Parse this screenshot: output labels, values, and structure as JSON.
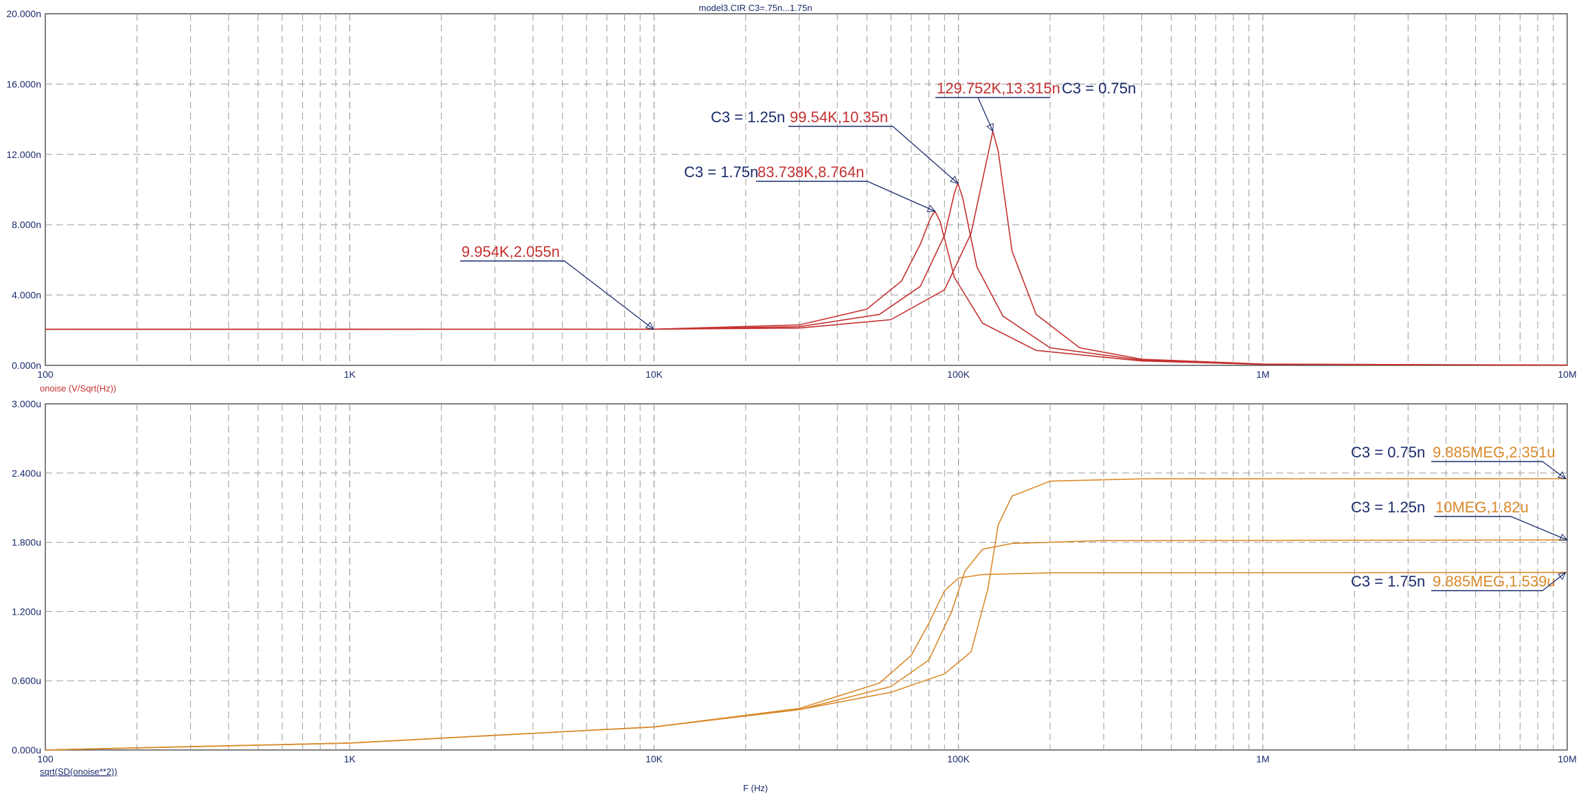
{
  "title": "model3.CIR C3=.75n...1.75n",
  "xlabel": "F (Hz)",
  "colors": {
    "top": "#c43030",
    "bottom": "#d98a2a",
    "axis": "#1a2a6b",
    "grid": "#9a9a9a"
  },
  "chart_data": [
    {
      "type": "line",
      "ylabel": "onoise (V/Sqrt(Hz))",
      "xscale": "log",
      "xlim": [
        100,
        10000000
      ],
      "ylim": [
        0,
        20
      ],
      "yunit": "n",
      "x_ticks": [
        "100",
        "1K",
        "10K",
        "100K",
        "1M",
        "10M"
      ],
      "y_ticks": [
        "0.000n",
        "4.000n",
        "8.000n",
        "12.000n",
        "16.000n",
        "20.000n"
      ],
      "grid": true,
      "series": [
        {
          "name": "C3 = 0.75n",
          "x": [
            100,
            10000,
            30000,
            60000,
            90000,
            110000,
            125000,
            129752,
            135000,
            150000,
            180000,
            250000,
            400000,
            1000000,
            10000000
          ],
          "y": [
            2.05,
            2.06,
            2.12,
            2.6,
            4.3,
            7.5,
            12.0,
            13.315,
            12.2,
            6.5,
            2.9,
            1.0,
            0.35,
            0.08,
            0.01
          ]
        },
        {
          "name": "C3 = 1.25n",
          "x": [
            100,
            10000,
            30000,
            55000,
            75000,
            90000,
            97000,
            99540,
            103000,
            115000,
            140000,
            200000,
            400000,
            1000000,
            10000000
          ],
          "y": [
            2.05,
            2.06,
            2.2,
            2.9,
            4.5,
            7.4,
            9.8,
            10.35,
            9.6,
            5.6,
            2.8,
            1.0,
            0.3,
            0.06,
            0.01
          ]
        },
        {
          "name": "C3 = 1.75n",
          "x": [
            100,
            10000,
            30000,
            50000,
            65000,
            75000,
            81000,
            83738,
            87000,
            97000,
            120000,
            180000,
            400000,
            1000000,
            10000000
          ],
          "y": [
            2.05,
            2.06,
            2.3,
            3.2,
            4.8,
            6.9,
            8.4,
            8.764,
            8.2,
            5.0,
            2.4,
            0.85,
            0.25,
            0.05,
            0.01
          ]
        }
      ],
      "annotations": [
        {
          "text": "9.954K,2.055n",
          "x": 9954,
          "y": 2.055
        },
        {
          "text": "83.738K,8.764n",
          "c3": "C3 = 1.75n",
          "x": 83738,
          "y": 8.764
        },
        {
          "text": "99.54K,10.35n",
          "c3": "C3 = 1.25n",
          "x": 99540,
          "y": 10.35
        },
        {
          "text": "129.752K,13.315n",
          "c3": "C3 = 0.75n",
          "x": 129752,
          "y": 13.315
        }
      ]
    },
    {
      "type": "line",
      "ylabel": "sqrt(SD(onoise**2))",
      "xscale": "log",
      "xlim": [
        100,
        10000000
      ],
      "ylim": [
        0,
        3
      ],
      "yunit": "u",
      "x_ticks": [
        "100",
        "1K",
        "10K",
        "100K",
        "1M",
        "10M"
      ],
      "y_ticks": [
        "0.000u",
        "0.600u",
        "1.200u",
        "1.800u",
        "2.400u",
        "3.000u"
      ],
      "grid": true,
      "series": [
        {
          "name": "C3 = 0.75n",
          "x": [
            100,
            1000,
            10000,
            30000,
            60000,
            90000,
            110000,
            125000,
            135000,
            150000,
            200000,
            400000,
            10000000
          ],
          "y": [
            0.0,
            0.06,
            0.2,
            0.35,
            0.5,
            0.66,
            0.85,
            1.4,
            1.95,
            2.2,
            2.33,
            2.35,
            2.351
          ]
        },
        {
          "name": "C3 = 1.25n",
          "x": [
            100,
            1000,
            10000,
            30000,
            60000,
            80000,
            95000,
            105000,
            120000,
            150000,
            300000,
            10000000
          ],
          "y": [
            0.0,
            0.06,
            0.2,
            0.35,
            0.55,
            0.78,
            1.2,
            1.55,
            1.74,
            1.79,
            1.815,
            1.82
          ]
        },
        {
          "name": "C3 = 1.75n",
          "x": [
            100,
            1000,
            10000,
            30000,
            55000,
            70000,
            80000,
            90000,
            100000,
            120000,
            200000,
            10000000
          ],
          "y": [
            0.0,
            0.06,
            0.2,
            0.36,
            0.58,
            0.82,
            1.1,
            1.38,
            1.49,
            1.52,
            1.535,
            1.539
          ]
        }
      ],
      "annotations": [
        {
          "text": "9.885MEG,2.351u",
          "c3": "C3 = 0.75n",
          "x": 9885000,
          "y": 2.351
        },
        {
          "text": "10MEG,1.82u",
          "c3": "C3 = 1.25n",
          "x": 10000000,
          "y": 1.82
        },
        {
          "text": "9.885MEG,1.539u",
          "c3": "C3 = 1.75n",
          "x": 9885000,
          "y": 1.539
        }
      ]
    }
  ]
}
